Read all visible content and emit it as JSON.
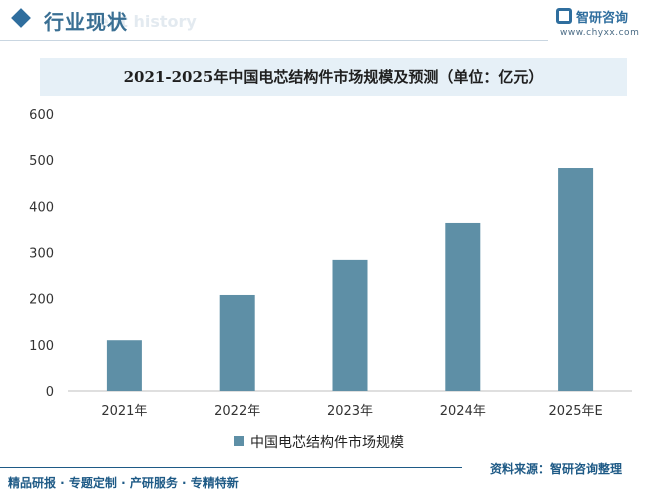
{
  "header": {
    "section_title": "行业现状",
    "section_subtitle_watermark": "ent history",
    "logo_name": "智研咨询",
    "logo_url": "www.chyxx.com"
  },
  "chart_data": {
    "type": "bar",
    "title": "2021-2025年中国电芯结构件市场规模及预测（单位：亿元）",
    "categories": [
      "2021年",
      "2022年",
      "2023年",
      "2024年",
      "2025年E"
    ],
    "series": [
      {
        "name": "中国电芯结构件市场规模",
        "values": [
          110,
          208,
          284,
          364,
          483
        ]
      }
    ],
    "yticks": [
      "0",
      "100",
      "200",
      "300",
      "400",
      "500",
      "600"
    ],
    "ylim": [
      0,
      600
    ],
    "grid": false,
    "legend_position": "bottom",
    "bar_color": "#5e8fa6"
  },
  "footer": {
    "left": "精品研报 · 专题定制 · 产研服务 · 专精特新",
    "right": "资料来源：智研咨询整理"
  },
  "colors": {
    "accent": "#2f6e9e",
    "title_band": "#e6f0f7"
  }
}
